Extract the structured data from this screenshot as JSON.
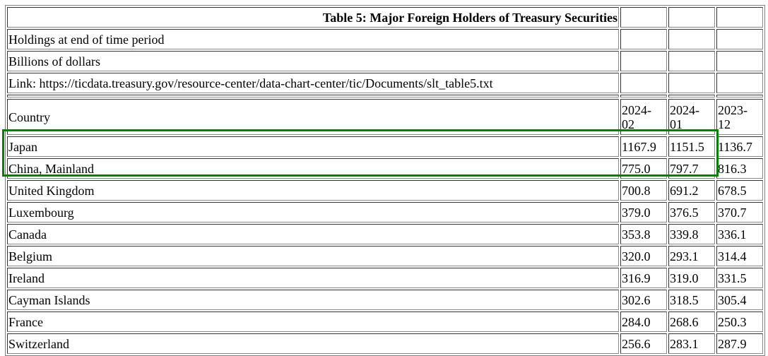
{
  "table": {
    "title": "Table 5: Major Foreign Holders of Treasury Securities",
    "notes": [
      "Holdings at end of time period",
      "Billions of dollars",
      "Link: https://ticdata.treasury.gov/resource-center/data-chart-center/tic/Documents/slt_table5.txt"
    ],
    "columns": [
      "Country",
      "2024-02",
      "2024-01",
      "2023-12"
    ],
    "rows": [
      [
        "Japan",
        "1167.9",
        "1151.5",
        "1136.7"
      ],
      [
        "China, Mainland",
        "775.0",
        "797.7",
        "816.3"
      ],
      [
        "United Kingdom",
        "700.8",
        "691.2",
        "678.5"
      ],
      [
        "Luxembourg",
        "379.0",
        "376.5",
        "370.7"
      ],
      [
        "Canada",
        "353.8",
        "339.8",
        "336.1"
      ],
      [
        "Belgium",
        "320.0",
        "293.1",
        "314.4"
      ],
      [
        "Ireland",
        "316.9",
        "319.0",
        "331.5"
      ],
      [
        "Cayman Islands",
        "302.6",
        "318.5",
        "305.4"
      ],
      [
        "France",
        "284.0",
        "268.6",
        "250.3"
      ],
      [
        "Switzerland",
        "256.6",
        "283.1",
        "287.9"
      ]
    ],
    "highlight_color": "#0a7d0a",
    "highlighted_rows": [
      "Japan",
      "China, Mainland"
    ]
  }
}
